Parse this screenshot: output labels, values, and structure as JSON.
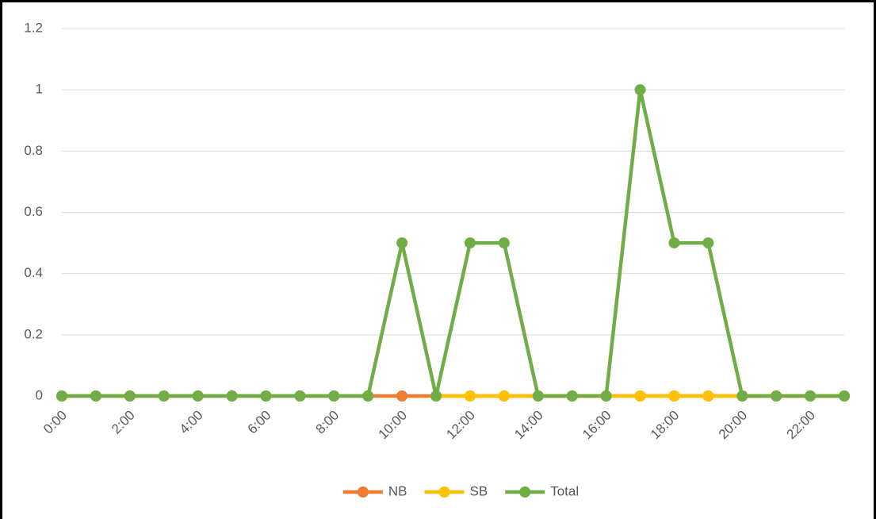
{
  "chart_data": {
    "type": "line",
    "categories": [
      "0:00",
      null,
      "2:00",
      null,
      "4:00",
      null,
      "6:00",
      null,
      "8:00",
      null,
      "10:00",
      null,
      "12:00",
      null,
      "14:00",
      null,
      "16:00",
      null,
      "18:00",
      null,
      "20:00",
      null,
      "22:00",
      null
    ],
    "series": [
      {
        "name": "NB",
        "color": "#ed7d31",
        "values": [
          0,
          0,
          0,
          0,
          0,
          0,
          0,
          0,
          0,
          0,
          0,
          0,
          0,
          0,
          0,
          0,
          0,
          0,
          0,
          0,
          0,
          0,
          0,
          0
        ]
      },
      {
        "name": "SB",
        "color": "#ffc000",
        "values": [
          null,
          null,
          null,
          null,
          null,
          null,
          null,
          null,
          null,
          null,
          null,
          0,
          0,
          0,
          0,
          0,
          0,
          0,
          0,
          0,
          0,
          0,
          0,
          0
        ]
      },
      {
        "name": "Total",
        "color": "#70ad47",
        "values": [
          0,
          0,
          0,
          0,
          0,
          0,
          0,
          0,
          0,
          0,
          0.5,
          0,
          0.5,
          0.5,
          0,
          0,
          0,
          1,
          0.5,
          0.5,
          0,
          0,
          0,
          0
        ]
      }
    ],
    "ylim": [
      0,
      1.2
    ],
    "yticks": [
      0,
      0.2,
      0.4,
      0.6,
      0.8,
      1,
      1.2
    ],
    "grid": true,
    "legend": "bottom"
  }
}
